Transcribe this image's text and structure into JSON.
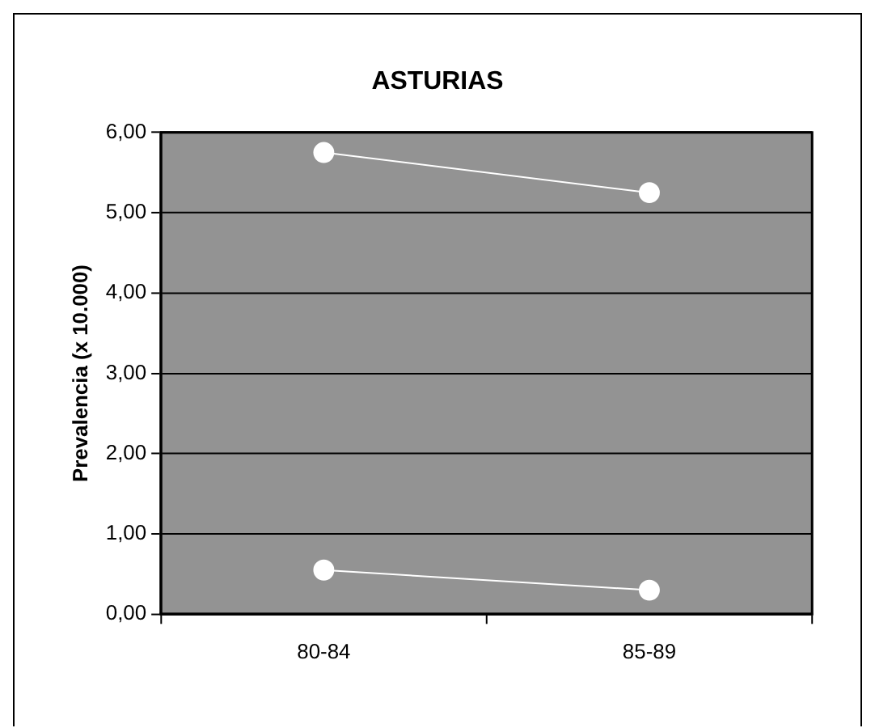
{
  "chart_data": {
    "type": "line",
    "title": "ASTURIAS",
    "ylabel": "Prevalencia (x 10.000)",
    "categories": [
      "80-84",
      "85-89"
    ],
    "series": [
      {
        "color": "#ffffff",
        "values": [
          5.75,
          5.25
        ]
      },
      {
        "color": "#ffffff",
        "values": [
          0.55,
          0.3
        ]
      }
    ],
    "ylim": [
      0,
      6
    ],
    "yticks": [
      {
        "value": 0,
        "label": "0,00"
      },
      {
        "value": 1,
        "label": "1,00"
      },
      {
        "value": 2,
        "label": "2,00"
      },
      {
        "value": 3,
        "label": "3,00"
      },
      {
        "value": 4,
        "label": "4,00"
      },
      {
        "value": 5,
        "label": "5,00"
      },
      {
        "value": 6,
        "label": "6,00"
      }
    ],
    "grid": "y",
    "marker": "circle",
    "line_style": "solid",
    "legend": false
  }
}
